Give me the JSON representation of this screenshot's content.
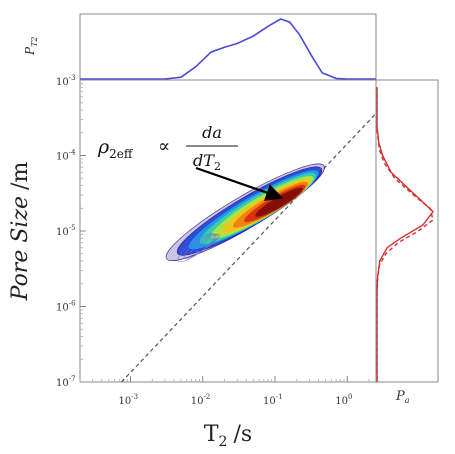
{
  "chart_data": [
    {
      "panel": "main",
      "type": "contour",
      "xlabel": "T",
      "xlabel_sub": "2",
      "xlabel_unit": "/s",
      "ylabel": "Pore Size",
      "ylabel_unit": "/m",
      "x_scale": "log",
      "y_scale": "log",
      "xlim": [
        0.0002,
        2.5
      ],
      "ylim": [
        1e-07,
        0.001
      ],
      "x_ticks": [
        {
          "value": 0.001,
          "base": "10",
          "exp": "-3"
        },
        {
          "value": 0.01,
          "base": "10",
          "exp": "-2"
        },
        {
          "value": 0.1,
          "base": "10",
          "exp": "-1"
        },
        {
          "value": 1,
          "base": "10",
          "exp": "0"
        }
      ],
      "y_ticks": [
        {
          "value": 1e-07,
          "base": "10",
          "exp": "-7"
        },
        {
          "value": 1e-06,
          "base": "10",
          "exp": "-6"
        },
        {
          "value": 1e-05,
          "base": "10",
          "exp": "-5"
        },
        {
          "value": 0.0001,
          "base": "10",
          "exp": "-4"
        },
        {
          "value": 0.001,
          "base": "10",
          "exp": "-3"
        }
      ],
      "reference_line": {
        "style": "dashed",
        "color": "#555555",
        "points": [
          [
            0.00075,
            1e-07
          ],
          [
            2.5,
            0.00036
          ]
        ]
      },
      "density_center": {
        "x": 0.13,
        "y": 2.5e-05
      },
      "density_range_x": [
        0.004,
        0.55
      ],
      "density_range_y": [
        5e-06,
        8e-05
      ],
      "annotation": {
        "rho": "ρ",
        "rho_sub": "2eff",
        "propto": "∝",
        "numerator": "da",
        "denominator": "dT",
        "denominator_sub": "2",
        "arrow_to": {
          "x": 0.13,
          "y": 2.5e-05
        }
      },
      "colors": [
        "#2b1a8c",
        "#1f3fd6",
        "#1fa0e8",
        "#38d4a6",
        "#b6e63a",
        "#f2c21a",
        "#f07a12",
        "#d42a12",
        "#7a0a0a"
      ]
    },
    {
      "panel": "top-marginal",
      "type": "line",
      "ylabel": "P",
      "ylabel_sub": "T2",
      "color": "#4a4ad8",
      "x": [
        0.0002,
        0.003,
        0.005,
        0.008,
        0.013,
        0.02,
        0.03,
        0.05,
        0.08,
        0.12,
        0.16,
        0.22,
        0.32,
        0.45,
        0.7,
        1.0,
        2.5
      ],
      "values": [
        0.0,
        0.0,
        0.03,
        0.2,
        0.44,
        0.52,
        0.58,
        0.7,
        0.86,
        0.98,
        0.93,
        0.72,
        0.38,
        0.1,
        0.01,
        0.0,
        0.0
      ]
    },
    {
      "panel": "right-marginal",
      "type": "line",
      "xlabel": "P",
      "xlabel_sub": "a",
      "series": [
        {
          "style": "solid",
          "color": "#d43030",
          "y": [
            0.0008,
            0.00025,
            0.00015,
            0.0001,
            6e-05,
            4e-05,
            2.5e-05,
            1.8e-05,
            1.2e-05,
            8e-06,
            6e-06,
            4e-06,
            2.5e-06,
            1.5e-06,
            1e-07
          ],
          "values": [
            0.0,
            0.0,
            0.03,
            0.1,
            0.25,
            0.5,
            0.8,
            1.0,
            0.82,
            0.42,
            0.18,
            0.05,
            0.01,
            0.0,
            0.0
          ]
        },
        {
          "style": "dashed",
          "color": "#d43030",
          "y": [
            0.0008,
            0.00022,
            0.00012,
            8e-05,
            5e-05,
            3e-05,
            2e-05,
            1.4e-05,
            1e-05,
            7e-06,
            5e-06,
            3.5e-06,
            2e-06,
            1e-07
          ],
          "values": [
            0.0,
            0.0,
            0.04,
            0.12,
            0.3,
            0.62,
            0.9,
            0.95,
            0.7,
            0.36,
            0.15,
            0.04,
            0.0,
            0.0
          ]
        }
      ]
    }
  ]
}
